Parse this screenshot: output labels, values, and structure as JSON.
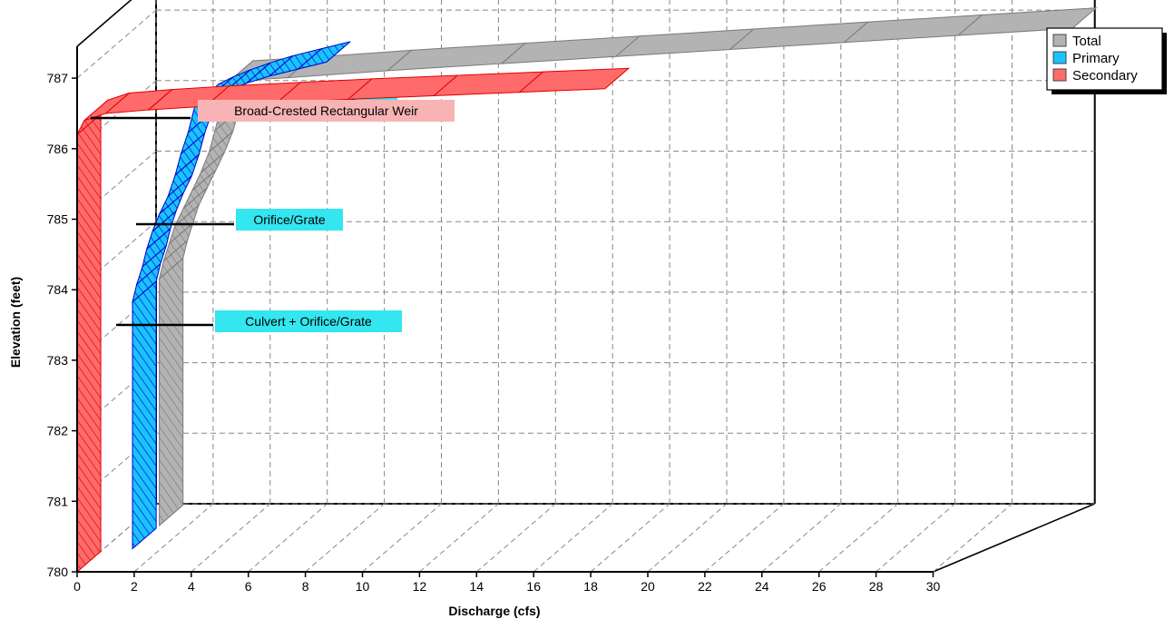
{
  "chart_data": {
    "type": "area",
    "title": "",
    "xlabel": "Discharge  (cfs)",
    "ylabel": "Elevation  (feet)",
    "xlim": [
      0,
      30
    ],
    "ylim": [
      780,
      787
    ],
    "x_ticks": [
      0,
      2,
      4,
      6,
      8,
      10,
      12,
      14,
      16,
      18,
      20,
      22,
      24,
      26,
      28,
      30
    ],
    "y_ticks": [
      780,
      781,
      782,
      783,
      784,
      785,
      786,
      787
    ],
    "grid": true,
    "projection": "3d-stacked-depth",
    "legend_position": "top-right",
    "series": [
      {
        "name": "Total",
        "color": "#b3b3b3",
        "hatch": "#7a7a7a",
        "x": [
          1.0,
          1.0,
          1.15,
          1.35,
          1.55,
          1.85,
          2.15,
          2.45,
          2.75,
          2.95,
          3.15,
          3.45,
          5.5,
          9.0,
          13.0,
          17.0,
          21.0,
          25.0,
          29.0,
          33.0
        ],
        "y": [
          780.0,
          783.5,
          783.75,
          784.0,
          784.25,
          784.5,
          784.75,
          785.0,
          785.3,
          785.6,
          785.9,
          786.3,
          786.35,
          786.45,
          786.55,
          786.65,
          786.75,
          786.85,
          786.95,
          787.05
        ]
      },
      {
        "name": "Primary",
        "color": "#19c3ff",
        "hatch": "#0000cc",
        "x": [
          1.0,
          1.0,
          1.15,
          1.35,
          1.5,
          1.7,
          1.95,
          2.25,
          2.5,
          2.7,
          2.95,
          3.2,
          3.7,
          4.3,
          5.0,
          5.8,
          6.8,
          7.8
        ],
        "y": [
          780.0,
          783.5,
          783.75,
          784.0,
          784.25,
          784.5,
          784.75,
          785.0,
          785.3,
          785.6,
          785.9,
          786.3,
          786.4,
          786.5,
          786.6,
          786.7,
          786.8,
          786.9
        ]
      },
      {
        "name": "Secondary",
        "color": "#ff6a6a",
        "hatch": "#e00000",
        "x": [
          0.0,
          0.0,
          0.25,
          1.0,
          2.5,
          4.5,
          7.0,
          9.5,
          12.5,
          15.5,
          18.5
        ],
        "y": [
          780.0,
          786.2,
          786.4,
          786.5,
          786.55,
          786.6,
          786.65,
          786.7,
          786.75,
          786.8,
          786.85
        ]
      }
    ],
    "annotations": [
      {
        "text": "Broad-Crested Rectangular Weir",
        "style": "pink"
      },
      {
        "text": "Orifice/Grate",
        "style": "cyan"
      },
      {
        "text": "Culvert + Orifice/Grate",
        "style": "cyan"
      }
    ],
    "hidden_label_fragment": "Orifice/Grate"
  }
}
